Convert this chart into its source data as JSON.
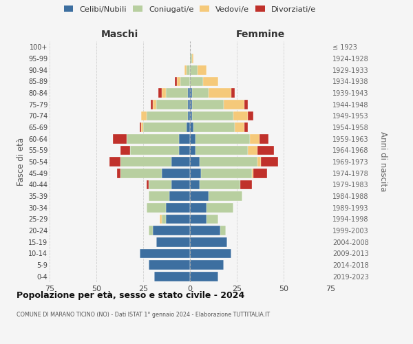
{
  "age_groups_bottom_to_top": [
    "0-4",
    "5-9",
    "10-14",
    "15-19",
    "20-24",
    "25-29",
    "30-34",
    "35-39",
    "40-44",
    "45-49",
    "50-54",
    "55-59",
    "60-64",
    "65-69",
    "70-74",
    "75-79",
    "80-84",
    "85-89",
    "90-94",
    "95-99",
    "100+"
  ],
  "birth_years_bottom_to_top": [
    "2019-2023",
    "2014-2018",
    "2009-2013",
    "2004-2008",
    "1999-2003",
    "1994-1998",
    "1989-1993",
    "1984-1988",
    "1979-1983",
    "1974-1978",
    "1969-1973",
    "1964-1968",
    "1959-1963",
    "1954-1958",
    "1949-1953",
    "1944-1948",
    "1939-1943",
    "1934-1938",
    "1929-1933",
    "1924-1928",
    "≤ 1923"
  ],
  "maschi": {
    "celibi": [
      19,
      22,
      27,
      18,
      20,
      13,
      13,
      11,
      10,
      15,
      10,
      6,
      6,
      2,
      1,
      1,
      1,
      0,
      0,
      0,
      0
    ],
    "coniugati": [
      0,
      0,
      0,
      0,
      2,
      2,
      10,
      11,
      12,
      22,
      27,
      26,
      28,
      23,
      22,
      17,
      12,
      5,
      2,
      0,
      0
    ],
    "vedovi": [
      0,
      0,
      0,
      0,
      0,
      1,
      0,
      0,
      0,
      0,
      0,
      0,
      0,
      1,
      3,
      2,
      2,
      2,
      1,
      0,
      0
    ],
    "divorziati": [
      0,
      0,
      0,
      0,
      0,
      0,
      0,
      0,
      1,
      2,
      6,
      5,
      7,
      1,
      0,
      1,
      2,
      1,
      0,
      0,
      0
    ]
  },
  "femmine": {
    "nubili": [
      15,
      18,
      22,
      20,
      16,
      9,
      9,
      10,
      5,
      6,
      5,
      3,
      3,
      2,
      1,
      1,
      1,
      0,
      0,
      0,
      0
    ],
    "coniugate": [
      0,
      0,
      0,
      0,
      3,
      6,
      14,
      18,
      22,
      27,
      31,
      28,
      29,
      22,
      22,
      17,
      9,
      7,
      4,
      1,
      0
    ],
    "vedove": [
      0,
      0,
      0,
      0,
      0,
      0,
      0,
      0,
      0,
      1,
      2,
      5,
      5,
      5,
      8,
      11,
      12,
      8,
      5,
      1,
      0
    ],
    "divorziate": [
      0,
      0,
      0,
      0,
      0,
      0,
      0,
      0,
      6,
      7,
      9,
      9,
      5,
      2,
      3,
      2,
      2,
      0,
      0,
      0,
      0
    ]
  },
  "colors": {
    "celibi": "#3d6fa0",
    "coniugati": "#b8cfa0",
    "vedovi": "#f5c97a",
    "divorziati": "#c0312b"
  },
  "xlim": 75,
  "title": "Popolazione per età, sesso e stato civile - 2024",
  "subtitle": "COMUNE DI MARANO TICINO (NO) - Dati ISTAT 1° gennaio 2024 - Elaborazione TUTTITALIA.IT",
  "xlabel_left": "Maschi",
  "xlabel_right": "Femmine",
  "ylabel_left": "Fasce di età",
  "ylabel_right": "Anni di nascita",
  "legend_labels": [
    "Celibi/Nubili",
    "Coniugati/e",
    "Vedovi/e",
    "Divorziati/e"
  ],
  "bg_color": "#f5f5f5",
  "grid_color": "#cccccc"
}
